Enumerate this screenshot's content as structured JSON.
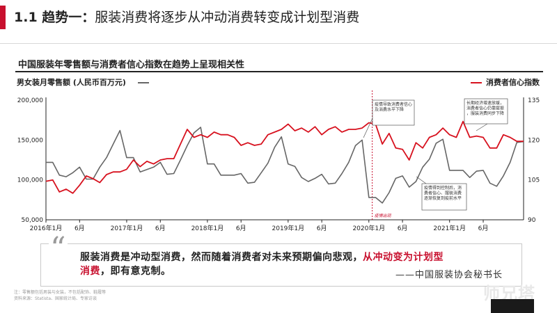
{
  "slide": {
    "number_label": "1.1 趋势一：",
    "title": "服装消费将逐步从冲动消费转变成计划型消费",
    "accent_color": "#c8102e"
  },
  "chart_data": {
    "type": "line",
    "title": "中国服装年零售额与消费者信心指数在趋势上呈现相关性",
    "left_axis_label": "男女装月零售额 (人民币百万元)",
    "right_axis_label": "消费者信心指数",
    "left_ylim": [
      50000,
      200000
    ],
    "right_ylim": [
      90,
      135
    ],
    "left_ticks": [
      "200,000",
      "150,000",
      "100,000",
      "50,000"
    ],
    "right_ticks": [
      "135",
      "120",
      "105",
      "90"
    ],
    "x_tick_labels": [
      "2016年1月",
      "6月",
      "2017年1月",
      "6月",
      "2018年1月",
      "6月",
      "2019年1月",
      "6月",
      "2020年1月",
      "6月",
      "2021年1月",
      "6月"
    ],
    "x_tick_index": [
      0,
      5,
      12,
      17,
      24,
      29,
      36,
      41,
      48,
      53,
      60,
      65
    ],
    "grid": false,
    "legend": "top",
    "series": [
      {
        "name": "男女装月零售额 (人民币百万元)",
        "axis": "left",
        "color": "#666666",
        "values": [
          122000,
          122000,
          106000,
          104000,
          109000,
          116000,
          101000,
          101000,
          116000,
          128000,
          145000,
          162000,
          128000,
          128000,
          110000,
          113000,
          116000,
          122000,
          107000,
          108000,
          125000,
          143000,
          159000,
          166000,
          120000,
          120000,
          106000,
          106000,
          106000,
          108000,
          96000,
          97000,
          109000,
          121000,
          141000,
          154000,
          120000,
          117000,
          103000,
          98000,
          102000,
          107000,
          95000,
          96000,
          108000,
          122000,
          143000,
          150000,
          78000,
          78000,
          71000,
          84000,
          102000,
          105000,
          91000,
          98000,
          116000,
          126000,
          146000,
          151000,
          112000,
          112000,
          112000,
          103000,
          111000,
          112000,
          96000,
          92000,
          105000,
          122000,
          147000,
          148000
        ]
      },
      {
        "name": "消费者信心指数",
        "axis": "right",
        "color": "#d7111e",
        "values": [
          104.5,
          105,
          100.5,
          101.5,
          100,
          103,
          106.5,
          105.5,
          104,
          107,
          108,
          108,
          109,
          112.5,
          110,
          112,
          111,
          112.5,
          113,
          113,
          118.5,
          124,
          121,
          122,
          121,
          123,
          122,
          122,
          121,
          118,
          119,
          118,
          118.5,
          122,
          123,
          124,
          126,
          123.5,
          124.5,
          123,
          125,
          122,
          124,
          125,
          123,
          124,
          124,
          124.5,
          126.5,
          126,
          118.5,
          122.5,
          117,
          116.5,
          112.5,
          119,
          117,
          121,
          122,
          124.5,
          122,
          121,
          127,
          121,
          121.5,
          121,
          117,
          117,
          122,
          121,
          119.5,
          119.5
        ]
      }
    ],
    "event_marker": {
      "label": "疫情出现",
      "index": 48.5
    },
    "annotations": [
      "疫情导致消费者信心及消费水平下降",
      "长期经济增速放缓，消费者信心仍需提振，服装消费同步下降",
      "疫情得到控制后，消费者信心、服装消费逐渐恢复到疫前水平"
    ]
  },
  "quote": {
    "mark": "“",
    "text_pre": "服装消费是冲动型消费，然而随着消费者对未来预期偏向悲观，",
    "text_hl1": "从冲动变为计划型",
    "text_hl2": "消费",
    "text_post": "，即有意克制。",
    "author": "——中国服装协会秘书长"
  },
  "footnote": {
    "line1": "注：零售额包括男装与女装，不包括配饰、鞋履等",
    "line2": "资料来源：Statista、国家统计局、专家访谈"
  },
  "watermark": "师兄塔"
}
